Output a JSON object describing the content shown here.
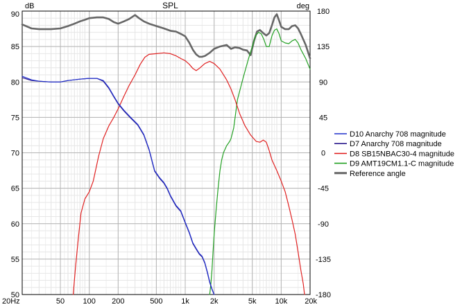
{
  "chart_data": {
    "type": "line",
    "title": "SPL",
    "ylabel_left": "dB",
    "ylabel_right": "deg",
    "x_scale": "log",
    "xlim": [
      20,
      20000
    ],
    "ylim_left": [
      50,
      90
    ],
    "ylim_right": [
      -180,
      180
    ],
    "grid": true,
    "legend_position": "right",
    "x_ticks": [
      {
        "value": 20,
        "label": "20Hz"
      },
      {
        "value": 50,
        "label": "50"
      },
      {
        "value": 100,
        "label": "100"
      },
      {
        "value": 200,
        "label": "200"
      },
      {
        "value": 500,
        "label": "500"
      },
      {
        "value": 1000,
        "label": "1k"
      },
      {
        "value": 2000,
        "label": "2k"
      },
      {
        "value": 5000,
        "label": "5k"
      },
      {
        "value": 10000,
        "label": "10k"
      },
      {
        "value": 20000,
        "label": "20k"
      }
    ],
    "y_ticks_left": [
      {
        "value": 50,
        "label": "50"
      },
      {
        "value": 55,
        "label": "55"
      },
      {
        "value": 60,
        "label": "60"
      },
      {
        "value": 65,
        "label": "65"
      },
      {
        "value": 70,
        "label": "70"
      },
      {
        "value": 75,
        "label": "75"
      },
      {
        "value": 80,
        "label": "80"
      },
      {
        "value": 85,
        "label": "85"
      },
      {
        "value": 90,
        "label": "90"
      }
    ],
    "y_ticks_right": [
      {
        "value": -180,
        "label": "-180"
      },
      {
        "value": -135,
        "label": "-135"
      },
      {
        "value": -90,
        "label": "-90"
      },
      {
        "value": -45,
        "label": "-45"
      },
      {
        "value": 0,
        "label": "0"
      },
      {
        "value": 45,
        "label": "45"
      },
      {
        "value": 90,
        "label": "90"
      },
      {
        "value": 135,
        "label": "135"
      },
      {
        "value": 180,
        "label": "180"
      }
    ],
    "series": [
      {
        "name": "D10 Anarchy 708 magnitude",
        "color": "#1f2ecc",
        "axis": "left",
        "points": [
          [
            20,
            80.8
          ],
          [
            25,
            80.3
          ],
          [
            30,
            80.1
          ],
          [
            40,
            80.0
          ],
          [
            50,
            80.0
          ],
          [
            60,
            80.2
          ],
          [
            80,
            80.4
          ],
          [
            100,
            80.5
          ],
          [
            120,
            80.5
          ],
          [
            140,
            80.2
          ],
          [
            160,
            79.2
          ],
          [
            180,
            78.0
          ],
          [
            200,
            77.0
          ],
          [
            230,
            76.0
          ],
          [
            270,
            75.0
          ],
          [
            320,
            74.0
          ],
          [
            370,
            72.6
          ],
          [
            420,
            70.5
          ],
          [
            480,
            67.5
          ],
          [
            540,
            66.5
          ],
          [
            600,
            65.8
          ],
          [
            650,
            65.0
          ],
          [
            700,
            64.0
          ],
          [
            800,
            62.6
          ],
          [
            900,
            61.8
          ],
          [
            1000,
            60.2
          ],
          [
            1100,
            58.8
          ],
          [
            1200,
            57.3
          ],
          [
            1300,
            56.5
          ],
          [
            1400,
            55.8
          ],
          [
            1500,
            55.4
          ],
          [
            1600,
            54.5
          ],
          [
            1700,
            53.2
          ],
          [
            1800,
            51.8
          ],
          [
            1900,
            50.8
          ],
          [
            2000,
            50.0
          ]
        ]
      },
      {
        "name": "D7 Anarchy 708 magnitude",
        "color": "#2a1a8c",
        "axis": "left",
        "points": [
          [
            20,
            80.6
          ],
          [
            25,
            80.2
          ],
          [
            30,
            80.1
          ],
          [
            40,
            80.0
          ],
          [
            50,
            80.0
          ],
          [
            60,
            80.2
          ],
          [
            80,
            80.4
          ],
          [
            100,
            80.5
          ],
          [
            120,
            80.5
          ],
          [
            140,
            80.1
          ],
          [
            160,
            79.1
          ],
          [
            180,
            77.9
          ],
          [
            200,
            76.9
          ],
          [
            230,
            75.9
          ],
          [
            270,
            74.9
          ],
          [
            320,
            73.9
          ],
          [
            370,
            72.5
          ],
          [
            420,
            70.4
          ],
          [
            480,
            67.4
          ],
          [
            540,
            66.4
          ],
          [
            600,
            65.7
          ],
          [
            650,
            64.9
          ],
          [
            700,
            63.9
          ],
          [
            800,
            62.5
          ],
          [
            900,
            61.7
          ],
          [
            1000,
            60.1
          ],
          [
            1100,
            58.7
          ],
          [
            1200,
            57.2
          ],
          [
            1300,
            56.4
          ],
          [
            1400,
            55.7
          ],
          [
            1500,
            55.3
          ],
          [
            1600,
            54.4
          ],
          [
            1700,
            53.1
          ],
          [
            1800,
            51.7
          ],
          [
            1900,
            50.7
          ],
          [
            2000,
            50.0
          ]
        ]
      },
      {
        "name": "D8 SB15NBAC30-4 magnitude",
        "color": "#e02020",
        "axis": "left",
        "points": [
          [
            68,
            50.0
          ],
          [
            72,
            54.0
          ],
          [
            77,
            58.0
          ],
          [
            82,
            61.5
          ],
          [
            90,
            63.5
          ],
          [
            100,
            64.5
          ],
          [
            110,
            66.0
          ],
          [
            125,
            69.5
          ],
          [
            140,
            72.0
          ],
          [
            160,
            73.8
          ],
          [
            180,
            75.0
          ],
          [
            200,
            76.2
          ],
          [
            230,
            78.0
          ],
          [
            260,
            79.5
          ],
          [
            300,
            81.0
          ],
          [
            340,
            82.5
          ],
          [
            380,
            83.5
          ],
          [
            420,
            83.9
          ],
          [
            500,
            84.0
          ],
          [
            600,
            84.1
          ],
          [
            700,
            84.0
          ],
          [
            800,
            83.7
          ],
          [
            900,
            83.3
          ],
          [
            1000,
            83.0
          ],
          [
            1100,
            82.5
          ],
          [
            1200,
            81.9
          ],
          [
            1300,
            81.6
          ],
          [
            1400,
            81.9
          ],
          [
            1600,
            82.6
          ],
          [
            1800,
            82.9
          ],
          [
            2000,
            82.6
          ],
          [
            2300,
            81.8
          ],
          [
            2700,
            80.3
          ],
          [
            3000,
            79.0
          ],
          [
            3300,
            77.5
          ],
          [
            3700,
            75.5
          ],
          [
            4200,
            73.8
          ],
          [
            4800,
            72.5
          ],
          [
            5500,
            71.6
          ],
          [
            6000,
            71.5
          ],
          [
            6500,
            71.8
          ],
          [
            7000,
            71.5
          ],
          [
            7500,
            70.3
          ],
          [
            8000,
            69.0
          ],
          [
            9000,
            67.5
          ],
          [
            10000,
            66.0
          ],
          [
            11000,
            64.5
          ],
          [
            12000,
            62.5
          ],
          [
            13000,
            60.5
          ],
          [
            14000,
            58.5
          ],
          [
            15000,
            56.0
          ],
          [
            16000,
            53.5
          ],
          [
            17000,
            51.5
          ],
          [
            17500,
            50.0
          ]
        ]
      },
      {
        "name": "D9 AMT19CM1.1-C magnitude",
        "color": "#22a022",
        "axis": "left",
        "points": [
          [
            1800,
            50.0
          ],
          [
            1850,
            51.5
          ],
          [
            1900,
            53.5
          ],
          [
            1950,
            56.0
          ],
          [
            2000,
            58.5
          ],
          [
            2100,
            62.0
          ],
          [
            2200,
            65.0
          ],
          [
            2300,
            67.5
          ],
          [
            2400,
            69.0
          ],
          [
            2500,
            70.0
          ],
          [
            2700,
            71.0
          ],
          [
            2900,
            71.6
          ],
          [
            3000,
            72.0
          ],
          [
            3200,
            73.5
          ],
          [
            3500,
            77.5
          ],
          [
            4000,
            80.5
          ],
          [
            4500,
            83.0
          ],
          [
            5000,
            85.0
          ],
          [
            5400,
            86.5
          ],
          [
            5800,
            87.0
          ],
          [
            6200,
            86.8
          ],
          [
            6600,
            86.0
          ],
          [
            7000,
            85.0
          ],
          [
            7500,
            85.0
          ],
          [
            8000,
            86.5
          ],
          [
            8500,
            87.3
          ],
          [
            9000,
            87.5
          ],
          [
            9500,
            86.8
          ],
          [
            10000,
            85.8
          ],
          [
            11000,
            85.5
          ],
          [
            12000,
            85.4
          ],
          [
            13000,
            85.8
          ],
          [
            14000,
            86.0
          ],
          [
            15000,
            85.5
          ],
          [
            16000,
            84.6
          ],
          [
            18000,
            83.3
          ],
          [
            20000,
            81.8
          ]
        ]
      },
      {
        "name": "Reference angle",
        "color": "#666666",
        "axis": "right",
        "width": 2.6,
        "points": [
          [
            20,
            163
          ],
          [
            25,
            158
          ],
          [
            30,
            157
          ],
          [
            40,
            157
          ],
          [
            50,
            158
          ],
          [
            60,
            161
          ],
          [
            70,
            164
          ],
          [
            80,
            167
          ],
          [
            90,
            169
          ],
          [
            100,
            171
          ],
          [
            120,
            172
          ],
          [
            140,
            172
          ],
          [
            160,
            170
          ],
          [
            180,
            166
          ],
          [
            200,
            164
          ],
          [
            230,
            167
          ],
          [
            260,
            170
          ],
          [
            300,
            175
          ],
          [
            330,
            171
          ],
          [
            370,
            167
          ],
          [
            420,
            164
          ],
          [
            500,
            161
          ],
          [
            600,
            158
          ],
          [
            700,
            155
          ],
          [
            800,
            154
          ],
          [
            900,
            151
          ],
          [
            1000,
            148
          ],
          [
            1100,
            140
          ],
          [
            1200,
            131
          ],
          [
            1300,
            125
          ],
          [
            1400,
            122
          ],
          [
            1500,
            122
          ],
          [
            1600,
            123
          ],
          [
            1800,
            127
          ],
          [
            2000,
            132
          ],
          [
            2300,
            135
          ],
          [
            2700,
            137
          ],
          [
            3000,
            132
          ],
          [
            3300,
            134
          ],
          [
            3700,
            133
          ],
          [
            4000,
            131
          ],
          [
            4400,
            130
          ],
          [
            4800,
            124
          ],
          [
            5200,
            142
          ],
          [
            5600,
            154
          ],
          [
            6000,
            156
          ],
          [
            6500,
            152
          ],
          [
            7000,
            149
          ],
          [
            7500,
            152
          ],
          [
            8000,
            162
          ],
          [
            8500,
            172
          ],
          [
            9000,
            176
          ],
          [
            9500,
            168
          ],
          [
            10000,
            160
          ],
          [
            11000,
            157
          ],
          [
            12000,
            157
          ],
          [
            13000,
            161
          ],
          [
            14000,
            162
          ],
          [
            15000,
            158
          ],
          [
            16000,
            151
          ],
          [
            18000,
            137
          ],
          [
            20000,
            120
          ]
        ]
      }
    ]
  }
}
